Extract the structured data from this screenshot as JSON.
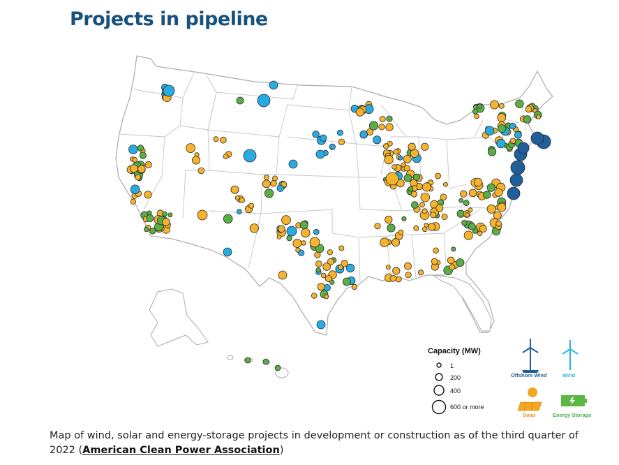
{
  "title": "Projects in pipeline",
  "legend": {
    "capacity_title": "Capacity (MW)",
    "sizes": [
      {
        "label": "1",
        "mw": 1
      },
      {
        "label": "200",
        "mw": 200
      },
      {
        "label": "400",
        "mw": 400
      },
      {
        "label": "600 or more",
        "mw": 600
      }
    ],
    "types": [
      {
        "label": "Offshore Wind",
        "color": "#1f5f9a",
        "icon": "offshore-wind-turbine-icon"
      },
      {
        "label": "Wind",
        "color": "#26b7e0",
        "icon": "wind-turbine-icon"
      },
      {
        "label": "Solar",
        "color": "#f5a623",
        "icon": "solar-panel-icon"
      },
      {
        "label": "Energy Storage",
        "color": "#4caf50",
        "icon": "battery-icon"
      }
    ]
  },
  "colors": {
    "offshore_wind": "#1f5f9a",
    "wind": "#29abe2",
    "solar": "#f7b32b",
    "storage": "#5aae45",
    "state_border": "#bfbfbf",
    "land": "#ffffff"
  },
  "caption": {
    "text": "Map of wind, solar and energy-storage projects in development or construction as of the third quarter of 2022 (",
    "link": "American Clean Power Association",
    "end": ")"
  }
}
